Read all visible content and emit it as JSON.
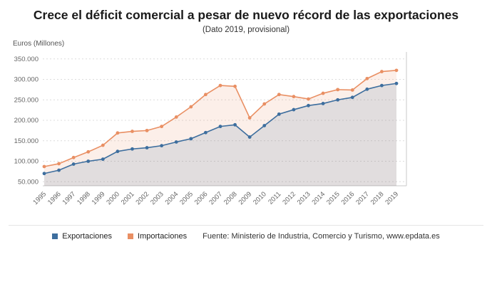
{
  "header": {
    "title": "Crece el déficit comercial a pesar de nuevo récord de las exportaciones",
    "subtitle": "(Dato 2019, provisional)"
  },
  "axis": {
    "y_unit_label": "Euros (Millones)"
  },
  "legend": {
    "source": "Fuente: Ministerio de Industria, Comercio y Turismo, www.epdata.es"
  },
  "chart_data": {
    "type": "line",
    "title": "Crece el déficit comercial a pesar de nuevo récord de las exportaciones",
    "subtitle": "(Dato 2019, provisional)",
    "ylabel": "Euros (Millones)",
    "xlabel": "",
    "grid": true,
    "legend_position": "bottom",
    "ylim": [
      40000,
      360000
    ],
    "yticks": [
      50000,
      100000,
      150000,
      200000,
      250000,
      300000,
      350000
    ],
    "categories": [
      "1995",
      "1996",
      "1997",
      "1998",
      "1999",
      "2000",
      "2001",
      "2002",
      "2003",
      "2004",
      "2005",
      "2006",
      "2007",
      "2008",
      "2009",
      "2010",
      "2011",
      "2012",
      "2013",
      "2014",
      "2015",
      "2016",
      "2017",
      "2018",
      "2019"
    ],
    "series": [
      {
        "name": "Exportaciones",
        "color": "#3d6e9e",
        "values": [
          70000,
          78000,
          93000,
          100000,
          105000,
          124000,
          130000,
          133000,
          138000,
          147000,
          155000,
          170000,
          185000,
          189000,
          159000,
          187000,
          215000,
          226000,
          236000,
          241000,
          250000,
          256000,
          276000,
          285000,
          290000
        ]
      },
      {
        "name": "Importaciones",
        "color": "#e98f63",
        "values": [
          87000,
          94000,
          109000,
          123000,
          139000,
          169000,
          173000,
          175000,
          185000,
          208000,
          233000,
          263000,
          285000,
          283000,
          206000,
          240000,
          263000,
          258000,
          252000,
          266000,
          275000,
          274000,
          302000,
          319000,
          322000
        ]
      }
    ]
  }
}
